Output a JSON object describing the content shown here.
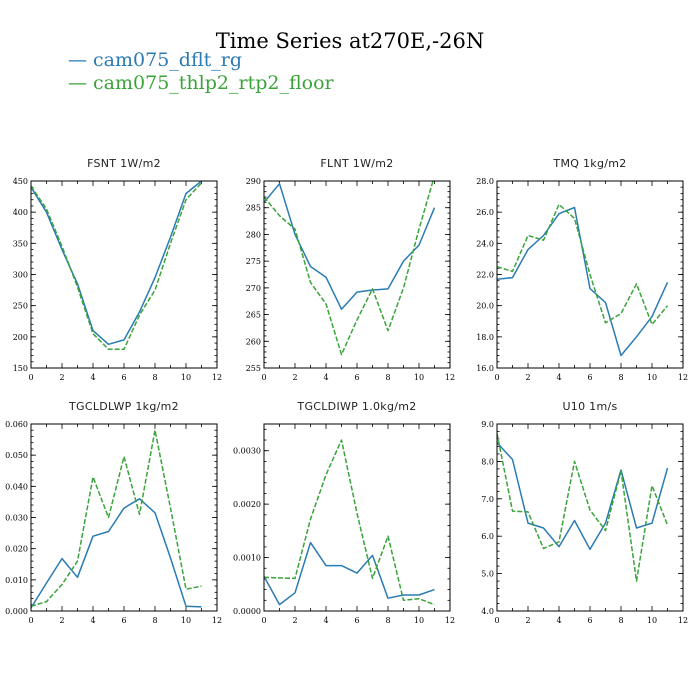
{
  "figure": {
    "title": "Time Series at270E,-26N",
    "legend": [
      {
        "label": "— cam075_dflt_rg",
        "color": "#2a7bb3"
      },
      {
        "label": "— cam075_thlp2_rtp2_floor",
        "color": "#3aa33a"
      }
    ]
  },
  "chart_data": [
    {
      "type": "line",
      "title": "FSNT   1W/m2",
      "x": [
        0,
        1,
        2,
        3,
        4,
        5,
        6,
        7,
        8,
        9,
        10,
        11
      ],
      "xlim": [
        0,
        12
      ],
      "ylim": [
        150,
        450
      ],
      "xticks": [
        0,
        2,
        4,
        6,
        8,
        10,
        12
      ],
      "xtick_labels": [
        "0",
        "2",
        "4",
        "6",
        "8",
        "10",
        "12"
      ],
      "yticks": [
        150,
        200,
        250,
        300,
        350,
        400,
        450
      ],
      "ytick_labels": [
        "150",
        "200",
        "250",
        "300",
        "350",
        "400",
        "450"
      ],
      "series": [
        {
          "name": "cam075_dflt_rg",
          "color": "#2a7bb3",
          "dash": "solid",
          "values": [
            440,
            400,
            340,
            285,
            210,
            188,
            195,
            240,
            295,
            360,
            430,
            450
          ]
        },
        {
          "name": "cam075_thlp2_rtp2_floor",
          "color": "#3aa33a",
          "dash": "dashed",
          "values": [
            442,
            405,
            345,
            280,
            205,
            180,
            180,
            235,
            275,
            350,
            420,
            447
          ]
        }
      ]
    },
    {
      "type": "line",
      "title": "FLNT   1W/m2",
      "x": [
        0,
        1,
        2,
        3,
        4,
        5,
        6,
        7,
        8,
        9,
        10,
        11
      ],
      "xlim": [
        0,
        12
      ],
      "ylim": [
        255,
        290
      ],
      "xticks": [
        0,
        2,
        4,
        6,
        8,
        10,
        12
      ],
      "xtick_labels": [
        "0",
        "2",
        "4",
        "6",
        "8",
        "10",
        "12"
      ],
      "yticks": [
        255,
        260,
        265,
        270,
        275,
        280,
        285,
        290
      ],
      "ytick_labels": [
        "255",
        "260",
        "265",
        "270",
        "275",
        "280",
        "285",
        "290"
      ],
      "series": [
        {
          "name": "cam075_dflt_rg",
          "color": "#2a7bb3",
          "dash": "solid",
          "values": [
            286,
            289.5,
            280,
            274,
            272,
            266,
            269.2,
            269.6,
            269.8,
            275,
            278,
            285
          ]
        },
        {
          "name": "cam075_thlp2_rtp2_floor",
          "color": "#3aa33a",
          "dash": "dashed",
          "values": [
            287,
            283.5,
            281,
            271,
            267,
            257.5,
            264,
            269.8,
            262,
            270,
            281,
            291
          ]
        }
      ]
    },
    {
      "type": "line",
      "title": "TMQ   1kg/m2",
      "x": [
        0,
        1,
        2,
        3,
        4,
        5,
        6,
        7,
        8,
        9,
        10,
        11
      ],
      "xlim": [
        0,
        12
      ],
      "ylim": [
        16,
        28
      ],
      "xticks": [
        0,
        2,
        4,
        6,
        8,
        10,
        12
      ],
      "xtick_labels": [
        "0",
        "2",
        "4",
        "6",
        "8",
        "10",
        "12"
      ],
      "yticks": [
        16,
        18,
        20,
        22,
        24,
        26,
        28
      ],
      "ytick_labels": [
        "16.0",
        "18.0",
        "20.0",
        "22.0",
        "24.0",
        "26.0",
        "28.0"
      ],
      "series": [
        {
          "name": "cam075_dflt_rg",
          "color": "#2a7bb3",
          "dash": "solid",
          "values": [
            21.7,
            21.8,
            23.6,
            24.5,
            25.9,
            26.3,
            21.1,
            20.2,
            16.8,
            18.0,
            19.3,
            21.5
          ]
        },
        {
          "name": "cam075_thlp2_rtp2_floor",
          "color": "#3aa33a",
          "dash": "dashed",
          "values": [
            22.5,
            22.2,
            24.5,
            24.2,
            26.5,
            25.6,
            22.0,
            18.9,
            19.5,
            21.4,
            18.8,
            20.0
          ]
        }
      ]
    },
    {
      "type": "line",
      "title": "TGCLDLWP   1kg/m2",
      "x": [
        0,
        1,
        2,
        3,
        4,
        5,
        6,
        7,
        8,
        9,
        10,
        11
      ],
      "xlim": [
        0,
        12
      ],
      "ylim": [
        0,
        0.06
      ],
      "xticks": [
        0,
        2,
        4,
        6,
        8,
        10,
        12
      ],
      "xtick_labels": [
        "0",
        "2",
        "4",
        "6",
        "8",
        "10",
        "12"
      ],
      "yticks": [
        0,
        0.01,
        0.02,
        0.03,
        0.04,
        0.05,
        0.06
      ],
      "ytick_labels": [
        "0.000",
        "0.010",
        "0.020",
        "0.030",
        "0.040",
        "0.050",
        "0.060"
      ],
      "series": [
        {
          "name": "cam075_dflt_rg",
          "color": "#2a7bb3",
          "dash": "solid",
          "values": [
            0.001,
            0.009,
            0.0168,
            0.0108,
            0.024,
            0.0255,
            0.033,
            0.036,
            0.0315,
            0.017,
            0.0015,
            0.0013
          ]
        },
        {
          "name": "cam075_thlp2_rtp2_floor",
          "color": "#3aa33a",
          "dash": "dashed",
          "values": [
            0.0015,
            0.003,
            0.0085,
            0.016,
            0.043,
            0.03,
            0.0495,
            0.031,
            0.058,
            0.033,
            0.007,
            0.008
          ]
        }
      ]
    },
    {
      "type": "line",
      "title": "TGCLDIWP   1.0kg/m2",
      "x": [
        0,
        1,
        2,
        3,
        4,
        5,
        6,
        7,
        8,
        9,
        10,
        11
      ],
      "xlim": [
        0,
        12
      ],
      "ylim": [
        0,
        0.0035
      ],
      "xticks": [
        0,
        2,
        4,
        6,
        8,
        10,
        12
      ],
      "xtick_labels": [
        "0",
        "2",
        "4",
        "6",
        "8",
        "10",
        "12"
      ],
      "yticks": [
        0,
        0.001,
        0.002,
        0.003
      ],
      "ytick_labels": [
        "0.0000",
        "0.0010",
        "0.0020",
        "0.0030"
      ],
      "series": [
        {
          "name": "cam075_dflt_rg",
          "color": "#2a7bb3",
          "dash": "solid",
          "values": [
            0.00065,
            0.00012,
            0.00034,
            0.00128,
            0.00085,
            0.00085,
            0.00071,
            0.00104,
            0.00024,
            0.0003,
            0.0003,
            0.0004
          ]
        },
        {
          "name": "cam075_thlp2_rtp2_floor",
          "color": "#3aa33a",
          "dash": "dashed",
          "values": [
            0.00063,
            0.00062,
            0.00061,
            0.00172,
            0.00255,
            0.0032,
            0.00183,
            0.00061,
            0.0014,
            0.0002,
            0.00023,
            0.00012
          ]
        }
      ]
    },
    {
      "type": "line",
      "title": "U10   1m/s",
      "x": [
        0,
        1,
        2,
        3,
        4,
        5,
        6,
        7,
        8,
        9,
        10,
        11
      ],
      "xlim": [
        0,
        12
      ],
      "ylim": [
        4,
        9
      ],
      "xticks": [
        0,
        2,
        4,
        6,
        8,
        10,
        12
      ],
      "xtick_labels": [
        "0",
        "2",
        "4",
        "6",
        "8",
        "10",
        "12"
      ],
      "yticks": [
        4,
        5,
        6,
        7,
        8,
        9
      ],
      "ytick_labels": [
        "4.0",
        "5.0",
        "6.0",
        "7.0",
        "8.0",
        "9.0"
      ],
      "series": [
        {
          "name": "cam075_dflt_rg",
          "color": "#2a7bb3",
          "dash": "solid",
          "values": [
            8.5,
            8.05,
            6.35,
            6.22,
            5.72,
            6.42,
            5.65,
            6.35,
            7.77,
            6.22,
            6.35,
            7.82
          ]
        },
        {
          "name": "cam075_thlp2_rtp2_floor",
          "color": "#3aa33a",
          "dash": "dashed",
          "values": [
            8.75,
            6.67,
            6.65,
            5.67,
            5.85,
            8.0,
            6.7,
            6.15,
            7.75,
            4.8,
            7.35,
            6.3
          ]
        }
      ]
    }
  ]
}
